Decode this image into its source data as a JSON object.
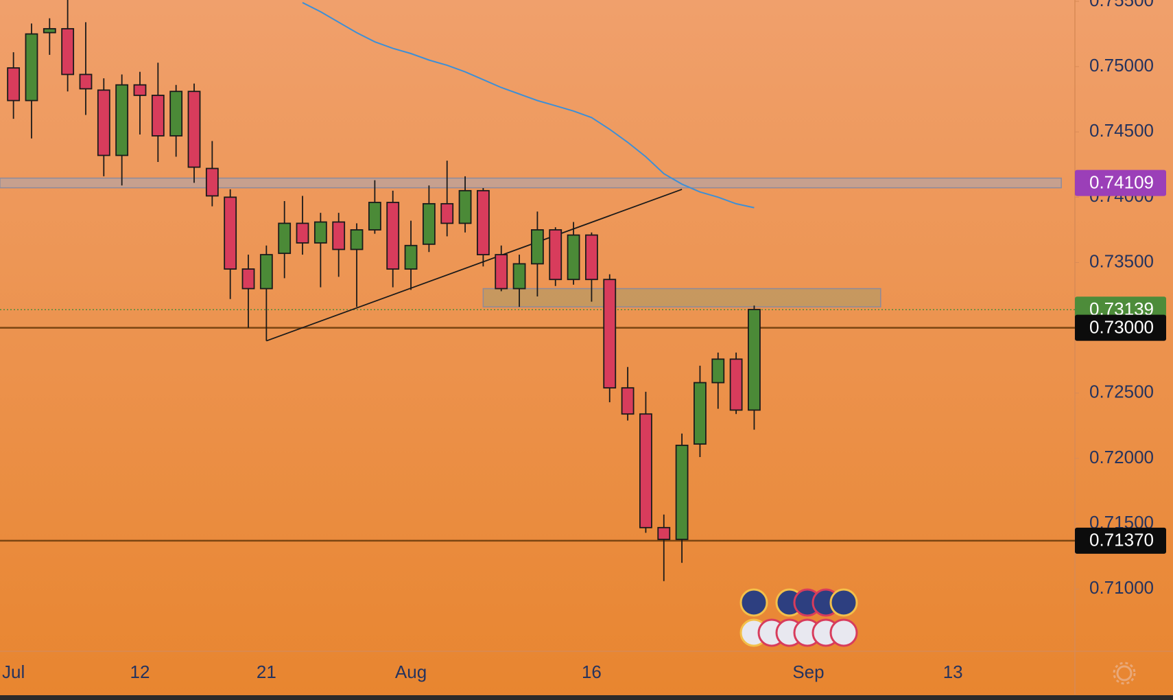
{
  "chart_data": {
    "type": "candlestick",
    "categories": [
      "Jul",
      null,
      null,
      null,
      null,
      null,
      null,
      "12",
      null,
      null,
      null,
      null,
      null,
      null,
      "21",
      null,
      null,
      null,
      null,
      null,
      null,
      null,
      "Aug",
      null,
      null,
      null,
      null,
      null,
      null,
      null,
      null,
      null,
      "16",
      null,
      null,
      null,
      null,
      null,
      null,
      null,
      null,
      null,
      null,
      null,
      "Sep",
      null,
      null,
      null,
      null,
      null,
      null,
      null,
      "13"
    ],
    "open": [
      0.7499,
      0.7474,
      0.7526,
      0.7529,
      0.7494,
      0.7482,
      0.7432,
      0.7486,
      0.7478,
      0.7447,
      0.7481,
      0.7422,
      0.74,
      0.7345,
      0.733,
      0.7357,
      0.738,
      0.7365,
      0.7381,
      0.736,
      0.7375,
      0.7396,
      0.7345,
      0.7364,
      0.7395,
      0.738,
      0.7405,
      0.7356,
      0.733,
      0.7349,
      0.7375,
      0.7337,
      0.7371,
      0.7337,
      0.7254,
      0.7234,
      0.7147,
      0.7138,
      0.7211,
      0.7258,
      0.7276,
      0.7237,
      null,
      null,
      null,
      null,
      null,
      null,
      null,
      null,
      null,
      null,
      null
    ],
    "high": [
      0.7511,
      0.7533,
      0.7537,
      0.7551,
      0.7534,
      0.7491,
      0.7494,
      0.7496,
      0.7503,
      0.7486,
      0.7487,
      0.7443,
      0.7406,
      0.7356,
      0.7363,
      0.7397,
      0.7401,
      0.7388,
      0.7388,
      0.738,
      0.7413,
      0.7405,
      0.7382,
      0.7409,
      0.7428,
      0.7416,
      0.7407,
      0.7363,
      0.7356,
      0.7389,
      0.7377,
      0.7381,
      0.7373,
      0.7341,
      0.727,
      0.7251,
      0.7157,
      0.7219,
      0.7271,
      0.7281,
      0.7281,
      0.7317,
      null,
      null,
      null,
      null,
      null,
      null,
      null,
      null,
      null,
      null,
      null
    ],
    "low": [
      0.746,
      0.7445,
      0.7509,
      0.7481,
      0.7463,
      0.7416,
      0.7409,
      0.7448,
      0.7427,
      0.7431,
      0.7411,
      0.7393,
      0.7322,
      0.73,
      0.729,
      0.7338,
      0.7356,
      0.7331,
      0.7339,
      0.7316,
      0.7372,
      0.7331,
      0.7329,
      0.7358,
      0.737,
      0.7373,
      0.7347,
      0.7328,
      0.7316,
      0.7324,
      0.7332,
      0.7333,
      0.732,
      0.7243,
      0.7229,
      0.7143,
      0.7106,
      0.712,
      0.7201,
      0.7238,
      0.7234,
      0.7222,
      null,
      null,
      null,
      null,
      null,
      null,
      null,
      null,
      null,
      null,
      null
    ],
    "close": [
      0.7474,
      0.7525,
      0.7529,
      0.7494,
      0.7483,
      0.7432,
      0.7486,
      0.7478,
      0.7447,
      0.7481,
      0.7423,
      0.7401,
      0.7345,
      0.733,
      0.7356,
      0.738,
      0.7365,
      0.7381,
      0.736,
      0.7375,
      0.7396,
      0.7345,
      0.7363,
      0.7395,
      0.738,
      0.7405,
      0.7356,
      0.733,
      0.7349,
      0.7375,
      0.7337,
      0.7371,
      0.7337,
      0.7254,
      0.7234,
      0.7147,
      0.7138,
      0.721,
      0.7258,
      0.7276,
      0.7237,
      0.7314,
      null,
      null,
      null,
      null,
      null,
      null,
      null,
      null,
      null,
      null,
      null
    ],
    "up_color": "#4b8a37",
    "down_color": "#d83c5c",
    "ylim": [
      0.70523,
      0.7551
    ],
    "yticks": [
      {
        "value": 0.71,
        "label": "0.71000"
      },
      {
        "value": 0.715,
        "label": "0.71500"
      },
      {
        "value": 0.72,
        "label": "0.72000"
      },
      {
        "value": 0.725,
        "label": "0.72500"
      },
      {
        "value": 0.73,
        "label": "0.73000"
      },
      {
        "value": 0.735,
        "label": "0.73500"
      },
      {
        "value": 0.74,
        "label": "0.74000"
      },
      {
        "value": 0.745,
        "label": "0.74500"
      },
      {
        "value": 0.75,
        "label": "0.75000"
      },
      {
        "value": 0.755,
        "label": "0.75500"
      }
    ],
    "moving_average": {
      "color": "#3d8fd6",
      "values": [
        null,
        null,
        null,
        null,
        null,
        null,
        null,
        null,
        null,
        null,
        null,
        null,
        null,
        null,
        null,
        null,
        0.7549,
        0.7542,
        0.7534,
        0.7526,
        0.7519,
        0.7514,
        0.751,
        0.7505,
        0.7501,
        0.7496,
        0.749,
        0.7484,
        0.7479,
        0.7474,
        0.747,
        0.7466,
        0.7461,
        0.7452,
        0.7442,
        0.7431,
        0.7418,
        0.741,
        0.7404,
        0.74,
        0.7395,
        0.7392,
        null,
        null,
        null,
        null,
        null,
        null,
        null,
        null,
        null,
        null,
        null
      ]
    },
    "trendline": {
      "color": "#1a1a1a",
      "x": [
        14,
        37
      ],
      "y": [
        0.729,
        0.7406
      ]
    },
    "zones": [
      {
        "x": [
          -0.75,
          58
        ],
        "y": [
          0.74072,
          0.74146
        ],
        "color": "#a8a6b8"
      },
      {
        "x": [
          26,
          48
        ],
        "y": [
          0.7316,
          0.733
        ],
        "color": "#a89a6a"
      }
    ],
    "levels": [
      {
        "value": 0.74109,
        "label": "0.74109",
        "line_style": "none",
        "color": "#9b3fb8"
      },
      {
        "value": 0.73139,
        "label": "0.73139",
        "line_style": "dotted",
        "color": "#4d8c3a"
      },
      {
        "value": 0.73,
        "label": "0.73000",
        "line_style": "solid",
        "color": "#7a4512"
      },
      {
        "value": 0.7137,
        "label": "0.71370",
        "line_style": "solid",
        "color": "#7a4512"
      }
    ]
  }
}
